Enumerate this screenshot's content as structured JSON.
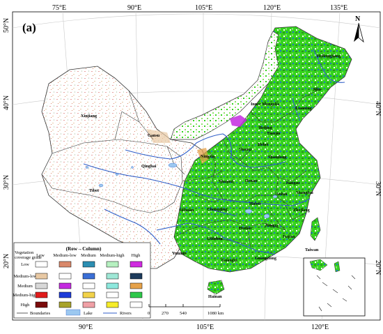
{
  "panel_label": "(a)",
  "north_label": "N",
  "grid": {
    "top_lon": [
      "75°E",
      "90°E",
      "105°E",
      "120°E",
      "135°E"
    ],
    "bottom_lon": [
      "90°E",
      "105°E",
      "120°E"
    ],
    "left_lat": [
      "50°N",
      "40°N",
      "30°N",
      "20°N"
    ],
    "right_lat": [
      "40°N",
      "30°N",
      "20°N"
    ]
  },
  "provinces": [
    "Heilongjiang",
    "Jilin",
    "Liaoning",
    "Inner Mongolia",
    "Xinjiang",
    "Gansu",
    "Ningxia",
    "Beijing",
    "Tianjin",
    "Hebei",
    "Shanxi",
    "Shandong",
    "Qinghai",
    "Shaanxi",
    "Henan",
    "Jiangsu",
    "Anhui",
    "Shanghai",
    "Tibet",
    "Sichuan",
    "Chongqing",
    "Hubei",
    "Zhejiang",
    "Hunan",
    "Jiangxi",
    "Guizhou",
    "Fujian",
    "Taiwan",
    "Yunnan",
    "Guangxi",
    "Guangdong",
    "Hainan"
  ],
  "legend": {
    "title": "(Row→Column)",
    "corner_label_line1": "Vegetation",
    "corner_label_line2": "coverage grade",
    "columns": [
      "Low",
      "Medium-low",
      "Medium",
      "Medium-high",
      "High"
    ],
    "rows": [
      "Low",
      "Medium-low",
      "Medium",
      "Medium-high",
      "High"
    ],
    "colors": [
      [
        "#ffffff",
        "#d9886a",
        "#2c8eb2",
        "#b6f0c0",
        "#d02be0"
      ],
      [
        "#e8c9a4",
        "#ffffff",
        "#3b6fd6",
        "#9fe7d6",
        "#1d3b5c"
      ],
      [
        "#d8d8d8",
        "#c42ae0",
        "#ffffff",
        "#8de8dd",
        "#e6a24a"
      ],
      [
        "#e01c1c",
        "#1d3bd9",
        "#f2d24a",
        "#ffffff",
        "#2ec84a"
      ],
      [
        "#7a0b0b",
        "#a8a32c",
        "#f0a0a6",
        "#f6ec2a",
        "#ffffff"
      ]
    ],
    "extra_items": [
      {
        "label": "Boundaries",
        "kind": "line",
        "color": "#333333"
      },
      {
        "label": "Lake",
        "kind": "fill",
        "color": "#9cc8f0"
      },
      {
        "label": "Rivers",
        "kind": "line",
        "color": "#2f5ec8"
      }
    ]
  },
  "scale_bar": {
    "ticks": [
      "0",
      "270",
      "540",
      "1080 km"
    ]
  },
  "colors": {
    "vegetation_high": "#35d31d",
    "vegetation_mid": "#8fe06a",
    "river": "#2f5ec8",
    "boundary": "#333333",
    "sand": "#e8c9a4",
    "pink": "#e8a0a0"
  }
}
